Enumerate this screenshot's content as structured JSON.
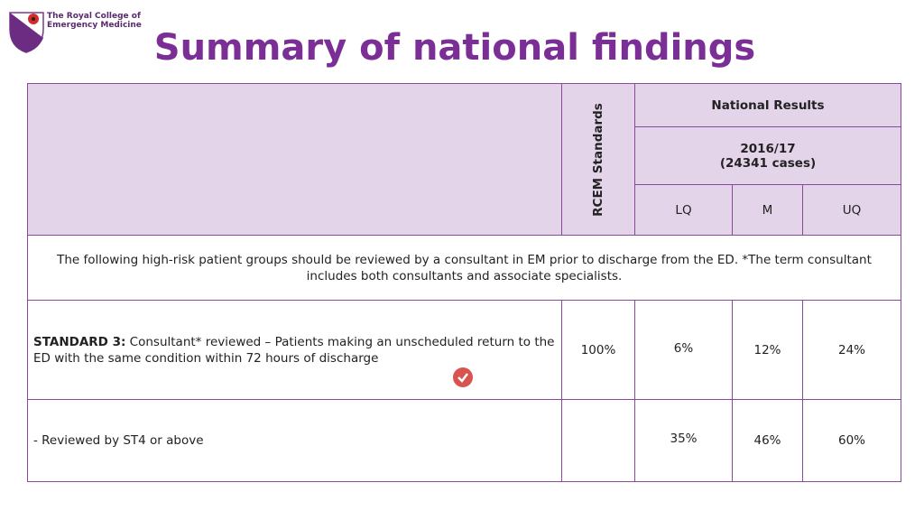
{
  "logo": {
    "line1": "The Royal College of",
    "line2": "Emergency Medicine"
  },
  "title": "Summary of national findings",
  "table": {
    "header": {
      "standards": "RCEM Standards",
      "national": "National Results",
      "period": "2016/17",
      "cases": "(24341 cases)",
      "lq": "LQ",
      "m": "M",
      "uq": "UQ"
    },
    "intro": "The following high-risk patient groups should be reviewed by a consultant in EM prior to discharge from the  ED.  *The term consultant includes both consultants and associate specialists.",
    "rows": [
      {
        "label_bold": "STANDARD 3:",
        "label": " Consultant* reviewed – Patients making an unscheduled return to the ED with the same condition within 72 hours of discharge",
        "standard": "100%",
        "lq": "6%",
        "m": "12%",
        "uq": "24%"
      },
      {
        "label": "- Reviewed by ST4 or above",
        "lq": "35%",
        "m": "46%",
        "uq": "60%"
      }
    ]
  }
}
